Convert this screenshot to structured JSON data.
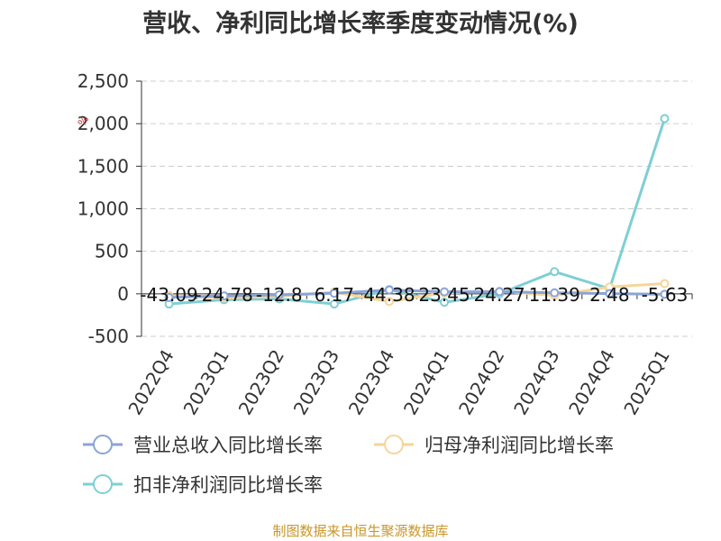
{
  "chart_data": {
    "type": "line",
    "title": "营收、净利同比增长率季度变动情况(%)",
    "categories": [
      "2022Q4",
      "2023Q1",
      "2023Q2",
      "2023Q3",
      "2023Q4",
      "2024Q1",
      "2024Q2",
      "2024Q3",
      "2024Q4",
      "2025Q1"
    ],
    "ylim": [
      -500,
      2500
    ],
    "yticks": [
      "-500",
      "0",
      "500",
      "1,000",
      "1,500",
      "2,000",
      "2,500"
    ],
    "ytick_values": [
      -500,
      0,
      500,
      1000,
      1500,
      2000,
      2500
    ],
    "grid": true,
    "legend_position": "bottom",
    "series": [
      {
        "name": "营业总收入同比增长率",
        "color": "#8aa4d6",
        "values": [
          -43.09,
          -24.78,
          -12.8,
          6.17,
          44.38,
          23.45,
          24.27,
          11.39,
          2.48,
          -5.63
        ],
        "labels": [
          "-43.09",
          "-24.78",
          "-12.8",
          "6.17",
          "44.38",
          "23.45",
          "24.27",
          "11.39",
          "2.48",
          "-5.63"
        ]
      },
      {
        "name": "归母净利润同比增长率",
        "color": "#f6d59a",
        "values": [
          -20,
          -50,
          -30,
          20,
          -90,
          10,
          30,
          -20,
          80,
          120
        ]
      },
      {
        "name": "扣非净利润同比增长率",
        "color": "#7ecfd4",
        "values": [
          -120,
          -70,
          -60,
          -120,
          50,
          -100,
          0,
          260,
          60,
          2060
        ]
      }
    ],
    "label_fragment": "%",
    "source": "制图数据来自恒生聚源数据库"
  }
}
